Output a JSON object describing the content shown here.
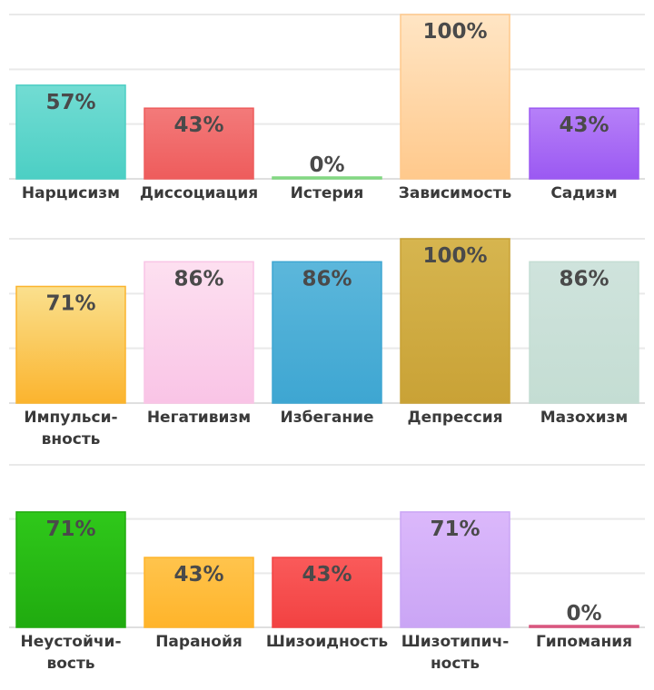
{
  "chart_data": [
    {
      "type": "bar",
      "ylim": [
        0,
        100
      ],
      "grid": true,
      "categories": [
        "Нарцисизм",
        "Диссоциация",
        "Истерия",
        "Зависимость",
        "Садизм"
      ],
      "category_lines": [
        [
          "Нарцисизм"
        ],
        [
          "Диссоциация"
        ],
        [
          "Истерия"
        ],
        [
          "Зависимость"
        ],
        [
          "Садизм"
        ]
      ],
      "values": [
        57,
        43,
        0,
        100,
        43
      ],
      "labels": [
        "57%",
        "43%",
        "0%",
        "100%",
        "43%"
      ],
      "colors": [
        [
          "#72dcd3",
          "#4ccfc4"
        ],
        [
          "#f37a7a",
          "#ee5c5c"
        ],
        [
          "#9ee89e",
          "#7fd67f"
        ],
        [
          "#ffe5c4",
          "#ffc98c"
        ],
        [
          "#b680f8",
          "#9b59f2"
        ]
      ]
    },
    {
      "type": "bar",
      "ylim": [
        0,
        100
      ],
      "grid": true,
      "categories": [
        "Импульсивность",
        "Негативизм",
        "Избегание",
        "Депрессия",
        "Мазохизм"
      ],
      "category_lines": [
        [
          "Импульси-",
          "вность"
        ],
        [
          "Негативизм"
        ],
        [
          "Избегание"
        ],
        [
          "Депрессия"
        ],
        [
          "Мазохизм"
        ]
      ],
      "values": [
        71,
        86,
        86,
        100,
        86
      ],
      "labels": [
        "71%",
        "86%",
        "86%",
        "100%",
        "86%"
      ],
      "colors": [
        [
          "#fae08e",
          "#fbb42e"
        ],
        [
          "#fde0f0",
          "#f9c4e6"
        ],
        [
          "#5cb7db",
          "#3ea6d2"
        ],
        [
          "#d6b54f",
          "#c9a236"
        ],
        [
          "#cfe3dc",
          "#c4ddd3"
        ]
      ]
    },
    {
      "type": "bar",
      "ylim": [
        0,
        100
      ],
      "grid": true,
      "categories": [
        "Неустойчивость",
        "Паранойя",
        "Шизоидность",
        "Шизотипичность",
        "Гипомания"
      ],
      "category_lines": [
        [
          "Неустойчи-",
          "вость"
        ],
        [
          "Паранойя"
        ],
        [
          "Шизоидность"
        ],
        [
          "Шизотипич-",
          "ность"
        ],
        [
          "Гипомания"
        ]
      ],
      "values": [
        71,
        43,
        43,
        71,
        0
      ],
      "labels": [
        "71%",
        "43%",
        "43%",
        "71%",
        "0%"
      ],
      "colors": [
        [
          "#2fc81a",
          "#20ab0f"
        ],
        [
          "#ffc44d",
          "#ffb42a"
        ],
        [
          "#fa5a5a",
          "#f24242"
        ],
        [
          "#dbb8fb",
          "#caa5f5"
        ],
        [
          "#ee8aa8",
          "#d7507a"
        ]
      ]
    }
  ]
}
